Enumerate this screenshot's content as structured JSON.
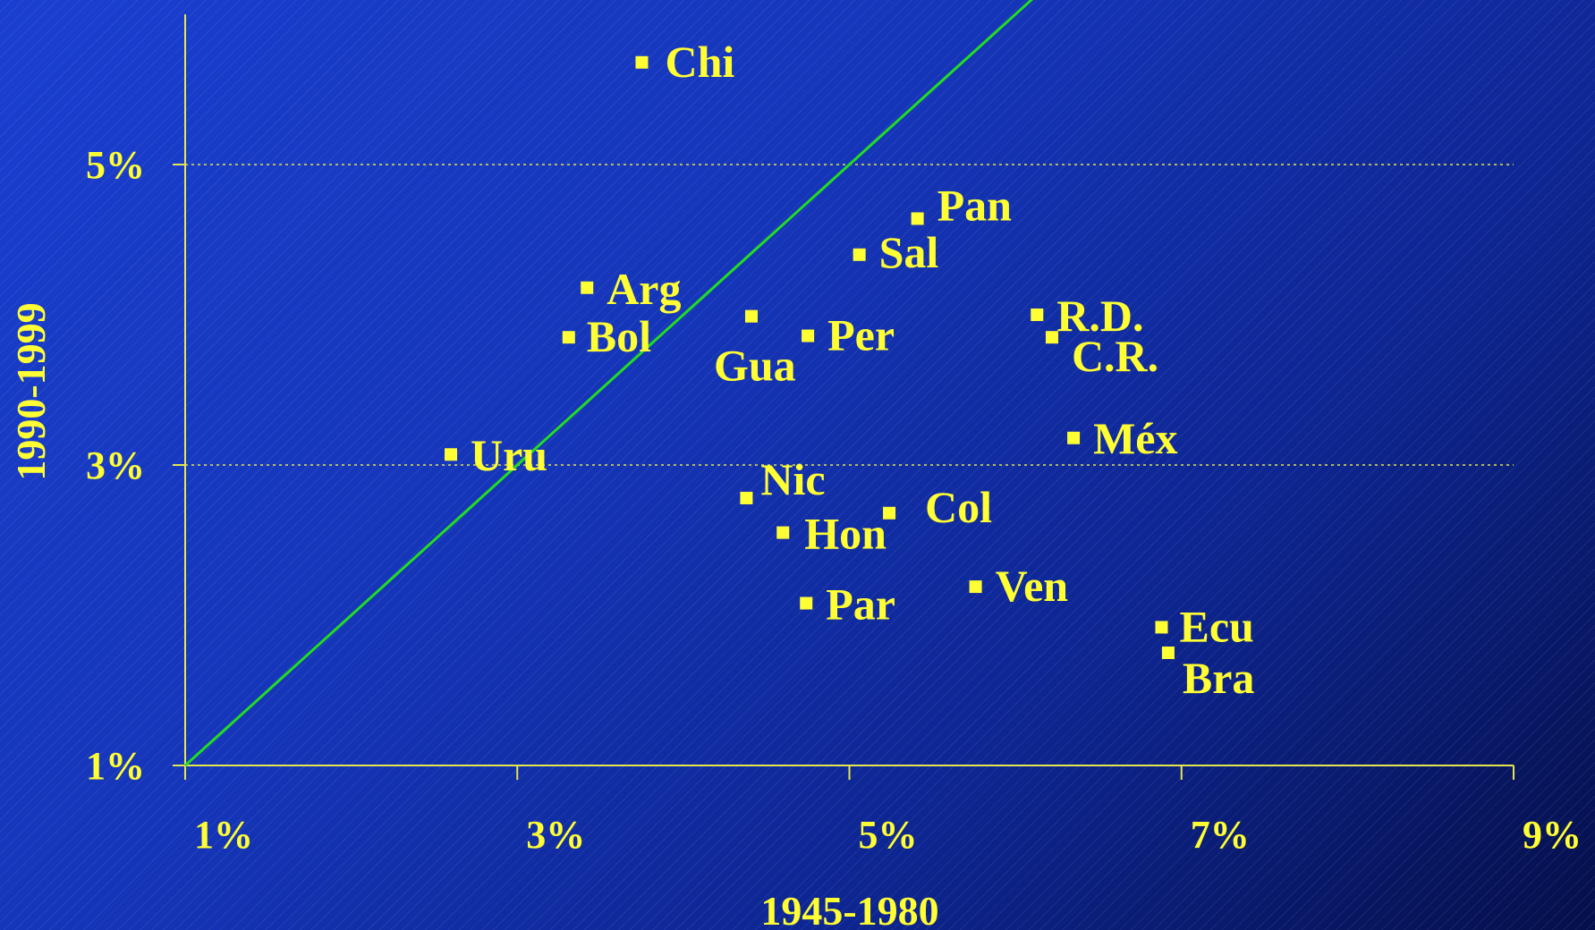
{
  "chart_data": {
    "type": "scatter",
    "title": "",
    "xlabel": "1945-1980",
    "ylabel": "1990-1999",
    "xlim": [
      1,
      9
    ],
    "ylim": [
      1,
      6.5
    ],
    "x_ticks": [
      1,
      3,
      5,
      7,
      9
    ],
    "x_tick_labels": [
      "1%",
      "3%",
      "5%",
      "7%",
      "9%"
    ],
    "y_ticks": [
      1,
      3,
      5
    ],
    "y_tick_labels": [
      "1%",
      "3%",
      "5%"
    ],
    "grid": "horizontal dotted at 3% and 5%",
    "reference_line": "45-degree line (y = x)",
    "points": [
      {
        "label": "Chi",
        "x": 3.75,
        "y": 5.68
      },
      {
        "label": "Pan",
        "x": 5.41,
        "y": 4.64
      },
      {
        "label": "Sal",
        "x": 5.06,
        "y": 4.4
      },
      {
        "label": "Arg",
        "x": 3.42,
        "y": 4.18
      },
      {
        "label": "Bol",
        "x": 3.31,
        "y": 3.85
      },
      {
        "label": "Gua",
        "x": 4.41,
        "y": 3.99
      },
      {
        "label": "Per",
        "x": 4.75,
        "y": 3.86
      },
      {
        "label": "R.D.",
        "x": 6.13,
        "y": 4.0
      },
      {
        "label": "C.R.",
        "x": 6.22,
        "y": 3.85
      },
      {
        "label": "Uru",
        "x": 2.6,
        "y": 3.07
      },
      {
        "label": "Méx",
        "x": 6.35,
        "y": 3.18
      },
      {
        "label": "Nic",
        "x": 4.38,
        "y": 2.78
      },
      {
        "label": "Col",
        "x": 5.24,
        "y": 2.68
      },
      {
        "label": "Hon",
        "x": 4.6,
        "y": 2.55
      },
      {
        "label": "Ven",
        "x": 5.76,
        "y": 2.19
      },
      {
        "label": "Par",
        "x": 4.74,
        "y": 2.08
      },
      {
        "label": "Ecu",
        "x": 6.88,
        "y": 1.92
      },
      {
        "label": "Bra",
        "x": 6.92,
        "y": 1.75
      }
    ],
    "colors": {
      "text": "#ffff33",
      "axis": "#e6e64d",
      "reference_line": "#22dd22",
      "markers": "#ffff33"
    }
  }
}
